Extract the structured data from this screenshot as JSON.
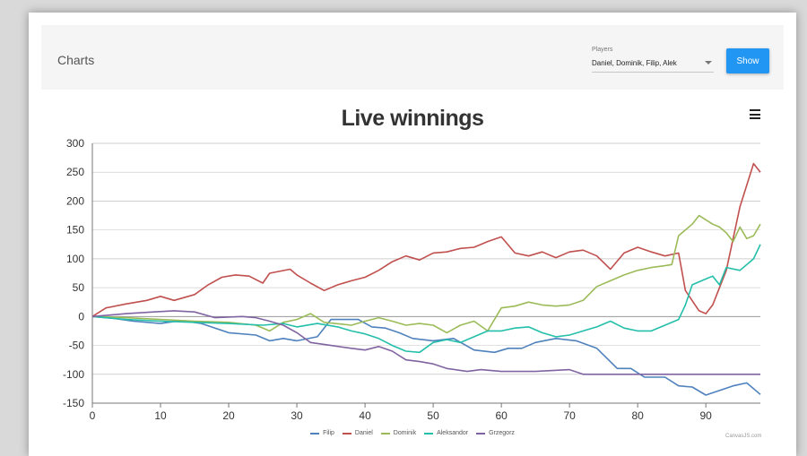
{
  "header": {
    "title": "Charts",
    "players_label": "Players",
    "players_value": "Daniel, Dominik, Filip, Alek",
    "show_label": "Show"
  },
  "credit": "CanvasJS.com",
  "chart_data": {
    "type": "line",
    "title": "Live winnings",
    "xlim": [
      0,
      98
    ],
    "ylim": [
      -150,
      300
    ],
    "x_ticks": [
      0,
      10,
      20,
      30,
      40,
      50,
      60,
      70,
      80,
      90
    ],
    "y_ticks": [
      300,
      250,
      200,
      150,
      100,
      50,
      0,
      -50,
      -100,
      -150
    ],
    "grid": true,
    "legend_position": "bottom",
    "series": [
      {
        "name": "Filip",
        "color": "#4f81bc",
        "points": [
          [
            0,
            0
          ],
          [
            3,
            -3
          ],
          [
            6,
            -8
          ],
          [
            10,
            -12
          ],
          [
            13,
            -7
          ],
          [
            16,
            -12
          ],
          [
            20,
            -28
          ],
          [
            24,
            -32
          ],
          [
            26,
            -42
          ],
          [
            28,
            -38
          ],
          [
            30,
            -42
          ],
          [
            33,
            -35
          ],
          [
            35,
            -5
          ],
          [
            39,
            -5
          ],
          [
            41,
            -18
          ],
          [
            43,
            -20
          ],
          [
            45,
            -28
          ],
          [
            47,
            -38
          ],
          [
            50,
            -42
          ],
          [
            53,
            -38
          ],
          [
            56,
            -58
          ],
          [
            59,
            -62
          ],
          [
            61,
            -55
          ],
          [
            63,
            -55
          ],
          [
            65,
            -45
          ],
          [
            68,
            -38
          ],
          [
            71,
            -42
          ],
          [
            74,
            -55
          ],
          [
            77,
            -90
          ],
          [
            79,
            -90
          ],
          [
            81,
            -105
          ],
          [
            84,
            -105
          ],
          [
            86,
            -120
          ],
          [
            88,
            -122
          ],
          [
            90,
            -136
          ],
          [
            94,
            -120
          ],
          [
            96,
            -115
          ],
          [
            98,
            -135
          ]
        ]
      },
      {
        "name": "Daniel",
        "color": "#c0504e",
        "points": [
          [
            0,
            0
          ],
          [
            2,
            15
          ],
          [
            5,
            22
          ],
          [
            8,
            28
          ],
          [
            10,
            35
          ],
          [
            12,
            28
          ],
          [
            15,
            38
          ],
          [
            17,
            55
          ],
          [
            19,
            68
          ],
          [
            21,
            72
          ],
          [
            23,
            70
          ],
          [
            25,
            58
          ],
          [
            26,
            75
          ],
          [
            29,
            82
          ],
          [
            30,
            72
          ],
          [
            32,
            58
          ],
          [
            34,
            45
          ],
          [
            36,
            55
          ],
          [
            38,
            62
          ],
          [
            40,
            68
          ],
          [
            42,
            80
          ],
          [
            44,
            95
          ],
          [
            46,
            105
          ],
          [
            48,
            98
          ],
          [
            50,
            110
          ],
          [
            52,
            112
          ],
          [
            54,
            118
          ],
          [
            56,
            120
          ],
          [
            58,
            130
          ],
          [
            60,
            138
          ],
          [
            62,
            110
          ],
          [
            64,
            105
          ],
          [
            66,
            112
          ],
          [
            68,
            102
          ],
          [
            70,
            112
          ],
          [
            72,
            115
          ],
          [
            74,
            105
          ],
          [
            76,
            82
          ],
          [
            78,
            110
          ],
          [
            80,
            120
          ],
          [
            82,
            112
          ],
          [
            84,
            105
          ],
          [
            86,
            110
          ],
          [
            87,
            45
          ],
          [
            89,
            10
          ],
          [
            90,
            5
          ],
          [
            91,
            20
          ],
          [
            93,
            80
          ],
          [
            95,
            190
          ],
          [
            97,
            265
          ],
          [
            98,
            250
          ]
        ]
      },
      {
        "name": "Dominik",
        "color": "#9bbb58",
        "points": [
          [
            0,
            0
          ],
          [
            5,
            -2
          ],
          [
            10,
            -5
          ],
          [
            15,
            -8
          ],
          [
            20,
            -10
          ],
          [
            24,
            -15
          ],
          [
            26,
            -25
          ],
          [
            28,
            -10
          ],
          [
            30,
            -5
          ],
          [
            32,
            5
          ],
          [
            34,
            -10
          ],
          [
            38,
            -15
          ],
          [
            40,
            -8
          ],
          [
            42,
            -2
          ],
          [
            44,
            -8
          ],
          [
            46,
            -15
          ],
          [
            48,
            -12
          ],
          [
            50,
            -15
          ],
          [
            52,
            -28
          ],
          [
            54,
            -15
          ],
          [
            56,
            -8
          ],
          [
            58,
            -25
          ],
          [
            60,
            15
          ],
          [
            62,
            18
          ],
          [
            64,
            25
          ],
          [
            66,
            20
          ],
          [
            68,
            18
          ],
          [
            70,
            20
          ],
          [
            72,
            28
          ],
          [
            74,
            52
          ],
          [
            76,
            62
          ],
          [
            78,
            72
          ],
          [
            80,
            80
          ],
          [
            82,
            85
          ],
          [
            84,
            88
          ],
          [
            85,
            90
          ],
          [
            86,
            140
          ],
          [
            88,
            160
          ],
          [
            89,
            175
          ],
          [
            91,
            160
          ],
          [
            92,
            155
          ],
          [
            93,
            145
          ],
          [
            94,
            130
          ],
          [
            95,
            155
          ],
          [
            96,
            135
          ],
          [
            97,
            140
          ],
          [
            98,
            160
          ]
        ]
      },
      {
        "name": "Aleksandor",
        "color": "#23bfaa",
        "points": [
          [
            0,
            0
          ],
          [
            5,
            -5
          ],
          [
            10,
            -8
          ],
          [
            15,
            -10
          ],
          [
            20,
            -12
          ],
          [
            25,
            -15
          ],
          [
            28,
            -12
          ],
          [
            30,
            -18
          ],
          [
            33,
            -12
          ],
          [
            36,
            -18
          ],
          [
            38,
            -25
          ],
          [
            40,
            -30
          ],
          [
            42,
            -38
          ],
          [
            44,
            -50
          ],
          [
            46,
            -60
          ],
          [
            48,
            -62
          ],
          [
            50,
            -45
          ],
          [
            52,
            -40
          ],
          [
            54,
            -45
          ],
          [
            56,
            -35
          ],
          [
            58,
            -25
          ],
          [
            60,
            -25
          ],
          [
            62,
            -20
          ],
          [
            64,
            -18
          ],
          [
            66,
            -28
          ],
          [
            68,
            -35
          ],
          [
            70,
            -32
          ],
          [
            72,
            -25
          ],
          [
            74,
            -18
          ],
          [
            76,
            -8
          ],
          [
            78,
            -20
          ],
          [
            80,
            -25
          ],
          [
            82,
            -25
          ],
          [
            84,
            -15
          ],
          [
            86,
            -5
          ],
          [
            87,
            20
          ],
          [
            88,
            55
          ],
          [
            90,
            65
          ],
          [
            91,
            70
          ],
          [
            92,
            55
          ],
          [
            93,
            85
          ],
          [
            95,
            80
          ],
          [
            97,
            100
          ],
          [
            98,
            125
          ]
        ]
      },
      {
        "name": "Grzegorz",
        "color": "#8064a1",
        "points": [
          [
            0,
            0
          ],
          [
            5,
            5
          ],
          [
            9,
            8
          ],
          [
            12,
            10
          ],
          [
            15,
            8
          ],
          [
            18,
            -2
          ],
          [
            22,
            0
          ],
          [
            24,
            -2
          ],
          [
            26,
            -8
          ],
          [
            28,
            -15
          ],
          [
            30,
            -28
          ],
          [
            32,
            -45
          ],
          [
            35,
            -50
          ],
          [
            38,
            -55
          ],
          [
            40,
            -58
          ],
          [
            42,
            -52
          ],
          [
            44,
            -60
          ],
          [
            46,
            -75
          ],
          [
            48,
            -78
          ],
          [
            50,
            -82
          ],
          [
            52,
            -90
          ],
          [
            55,
            -95
          ],
          [
            57,
            -92
          ],
          [
            60,
            -95
          ],
          [
            65,
            -95
          ],
          [
            70,
            -92
          ],
          [
            72,
            -100
          ],
          [
            80,
            -100
          ],
          [
            98,
            -100
          ]
        ]
      }
    ]
  }
}
